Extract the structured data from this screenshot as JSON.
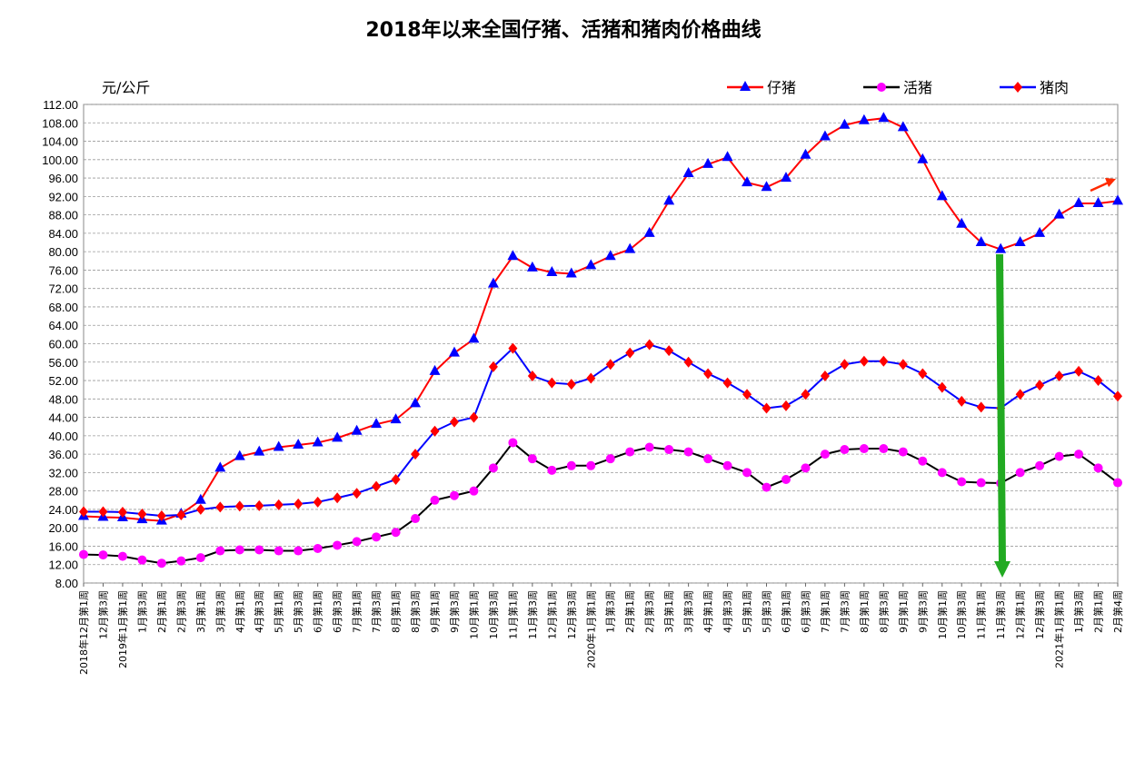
{
  "chart_data": {
    "type": "line",
    "title": "2018年以来全国仔猪、活猪和猪肉价格曲线",
    "y_label": "元/公斤",
    "categories": [
      "2018年12月第1周",
      "12月第3周",
      "2019年1月第1周",
      "1月第3周",
      "2月第1周",
      "2月第3周",
      "3月第1周",
      "3月第3周",
      "4月第1周",
      "4月第3周",
      "5月第1周",
      "5月第3周",
      "6月第1周",
      "6月第3周",
      "7月第1周",
      "7月第3周",
      "8月第1周",
      "8月第3周",
      "9月第1周",
      "9月第3周",
      "10月第1周",
      "10月第3周",
      "11月第1周",
      "11月第3周",
      "12月第1周",
      "12月第3周",
      "2020年1月第1周",
      "1月第3周",
      "2月第1周",
      "2月第3周",
      "3月第1周",
      "3月第3周",
      "4月第1周",
      "4月第3周",
      "5月第1周",
      "5月第3周",
      "6月第1周",
      "6月第3周",
      "7月第1周",
      "7月第3周",
      "8月第1周",
      "8月第3周",
      "9月第1周",
      "9月第3周",
      "10月第1周",
      "10月第3周",
      "11月第1周",
      "11月第3周",
      "12月第1周",
      "12月第3周",
      "2021年1月第1周",
      "1月第3周",
      "2月第1周",
      "2月第4周"
    ],
    "series": [
      {
        "name": "仔猪",
        "color": "#ff0000",
        "marker": "triangle",
        "marker_color": "#0000ff",
        "values": [
          22.5,
          22.3,
          22.2,
          21.8,
          21.5,
          23,
          26,
          33,
          35.5,
          36.5,
          37.5,
          38,
          38.5,
          39.5,
          41,
          42.5,
          43.5,
          47,
          54,
          58,
          61,
          73,
          79,
          76.5,
          75.5,
          75.2,
          77,
          79,
          80.5,
          84,
          91,
          97,
          99,
          100.5,
          95,
          94,
          96,
          101,
          105,
          107.5,
          108.5,
          109,
          107,
          100,
          92,
          86,
          82,
          80.5,
          82,
          84,
          88,
          90.5,
          90.5,
          91
        ]
      },
      {
        "name": "活猪",
        "color": "#000000",
        "marker": "circle",
        "marker_color": "#ff00ff",
        "values": [
          14.2,
          14.1,
          13.8,
          13,
          12.3,
          12.8,
          13.5,
          15,
          15.2,
          15.2,
          15,
          15,
          15.5,
          16.2,
          17,
          18,
          19,
          22,
          26,
          27,
          28,
          33,
          38.5,
          35,
          32.5,
          33.5,
          33.5,
          35,
          36.5,
          37.5,
          37,
          36.5,
          35,
          33.5,
          32,
          28.8,
          30.5,
          33,
          36,
          37,
          37.2,
          37.2,
          36.5,
          34.5,
          32,
          30,
          29.8,
          29.7,
          32,
          33.5,
          35.5,
          36,
          33,
          29.8
        ]
      },
      {
        "name": "猪肉",
        "color": "#0000ff",
        "marker": "diamond",
        "marker_color": "#ff0000",
        "values": [
          23.5,
          23.5,
          23.4,
          23,
          22.6,
          22.8,
          24,
          24.5,
          24.7,
          24.8,
          25,
          25.2,
          25.6,
          26.5,
          27.5,
          29,
          30.5,
          36,
          41,
          43,
          44,
          55,
          59,
          53,
          51.5,
          51.2,
          52.5,
          55.5,
          58,
          59.8,
          58.5,
          56,
          53.5,
          51.5,
          49,
          46,
          46.5,
          49,
          53,
          55.5,
          56.2,
          56.2,
          55.5,
          53.5,
          50.5,
          47.5,
          46.2,
          46,
          49,
          51,
          53,
          54,
          52,
          48.6
        ]
      }
    ],
    "ylim": [
      8,
      112
    ],
    "yticks": [
      {
        "value": 8,
        "label": "8.00"
      },
      {
        "value": 12,
        "label": "12.00"
      },
      {
        "value": 16,
        "label": "16.00"
      },
      {
        "value": 20,
        "label": "20.00"
      },
      {
        "value": 24,
        "label": "24.00"
      },
      {
        "value": 28,
        "label": "28.00"
      },
      {
        "value": 32,
        "label": "32.00"
      },
      {
        "value": 36,
        "label": "36.00"
      },
      {
        "value": 40,
        "label": "40.00"
      },
      {
        "value": 44,
        "label": "44.00"
      },
      {
        "value": 48,
        "label": "48.00"
      },
      {
        "value": 52,
        "label": "52.00"
      },
      {
        "value": 56,
        "label": "56.00"
      },
      {
        "value": 60,
        "label": "60.00"
      },
      {
        "value": 64,
        "label": "64.00"
      },
      {
        "value": 68,
        "label": "68.00"
      },
      {
        "value": 72,
        "label": "72.00"
      },
      {
        "value": 76,
        "label": "76.00"
      },
      {
        "value": 80,
        "label": "80.00"
      },
      {
        "value": 84,
        "label": "84.00"
      },
      {
        "value": 88,
        "label": "88.00"
      },
      {
        "value": 92,
        "label": "92.00"
      },
      {
        "value": 96,
        "label": "96.00"
      },
      {
        "value": 100,
        "label": "100.00"
      },
      {
        "value": 104,
        "label": "104.00"
      },
      {
        "value": 108,
        "label": "108.00"
      },
      {
        "value": 112,
        "label": "112.00"
      }
    ],
    "grid": true,
    "legend": "top-right"
  }
}
